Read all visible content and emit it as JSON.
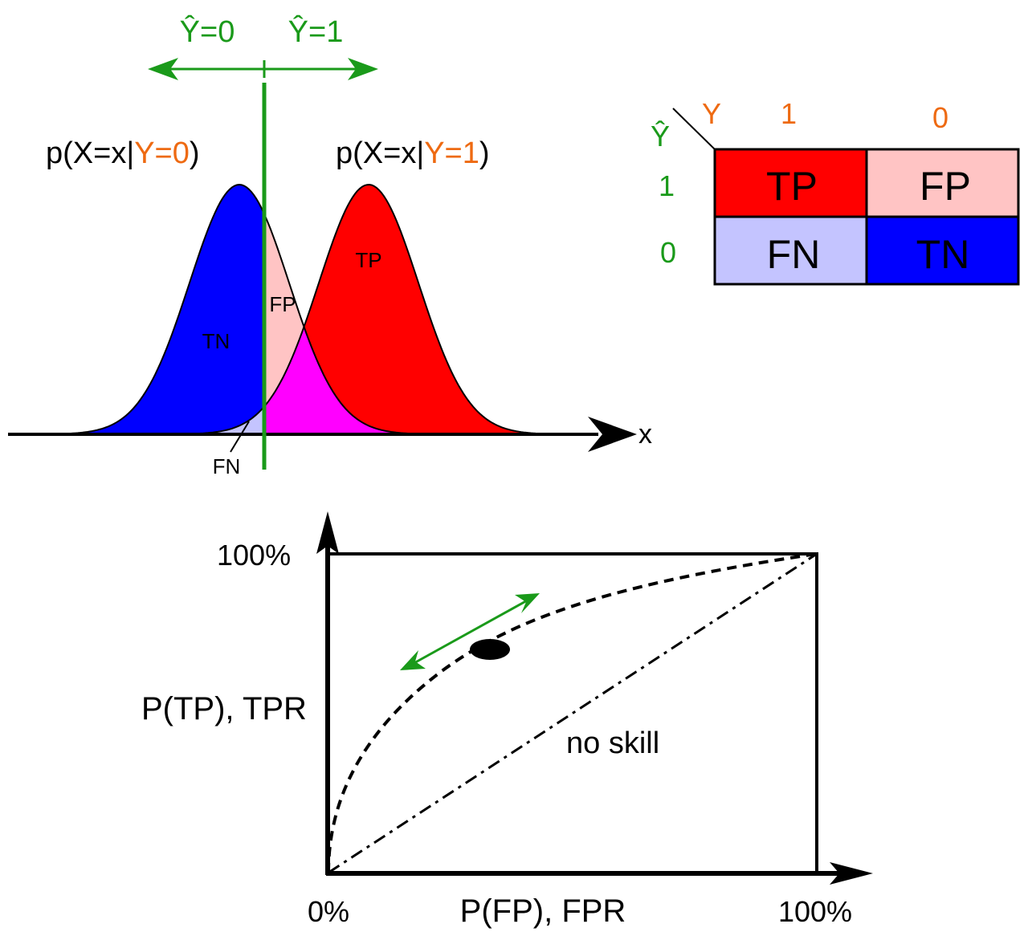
{
  "colors": {
    "green": "#1a9a1a",
    "orange": "#ee6a12",
    "tp": "#ff0000",
    "fp": "#ffc4c4",
    "fn": "#c4c4ff",
    "tn": "#0000ff",
    "overlap": "#ff00ff"
  },
  "threshold": {
    "left_label": "Ŷ=0",
    "right_label": "Ŷ=1"
  },
  "distributions": {
    "neg": {
      "prefix": "p(X=x|",
      "cond": "Y=0",
      "suffix": ")"
    },
    "pos": {
      "prefix": "p(X=x|",
      "cond": "Y=1",
      "suffix": ")"
    },
    "axis_label": "x",
    "region_labels": {
      "tn": "TN",
      "fp": "FP",
      "tp": "TP",
      "fn": "FN"
    }
  },
  "confusion_matrix": {
    "pred_header": "Ŷ",
    "actual_header": "Y",
    "col_labels": [
      "1",
      "0"
    ],
    "row_labels": [
      "1",
      "0"
    ],
    "cells": [
      [
        "TP",
        "FP"
      ],
      [
        "FN",
        "TN"
      ]
    ]
  },
  "roc": {
    "y_top_label": "100%",
    "y_axis_label": "P(TP), TPR",
    "x_left_label": "0%",
    "x_axis_label": "P(FP), FPR",
    "x_right_label": "100%",
    "diagonal_label": "no skill"
  }
}
